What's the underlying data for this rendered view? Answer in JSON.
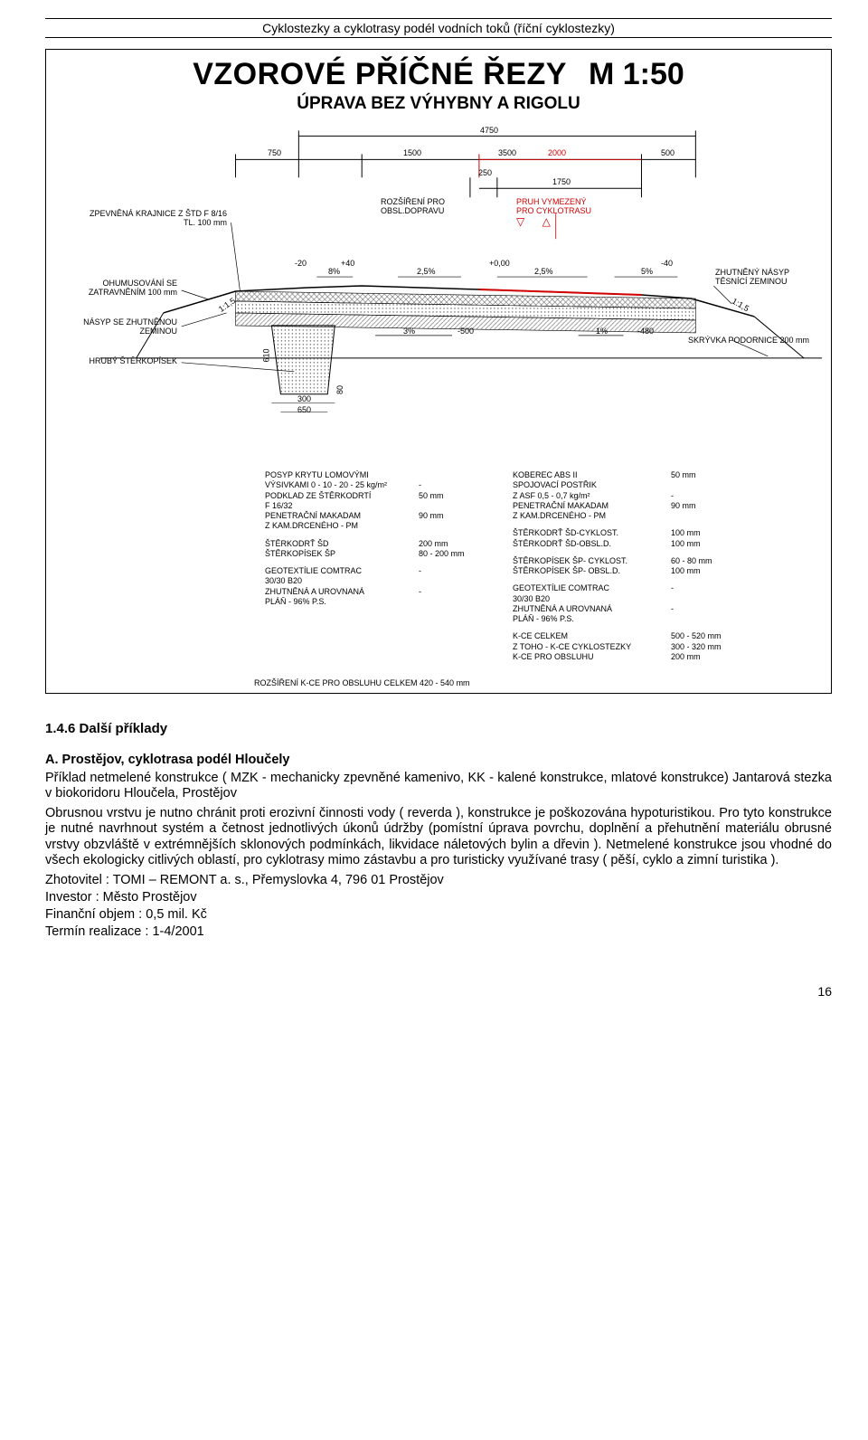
{
  "header": {
    "title": "Cyklostezky a cyklotrasy podél vodních toků (říční cyklostezky)"
  },
  "diagram": {
    "title": "VZOROVÉ PŘÍČNÉ ŘEZY",
    "scale": "M 1:50",
    "subtitle": "ÚPRAVA BEZ VÝHYBNY A RIGOLU",
    "dims": {
      "d4750": "4750",
      "d750": "750",
      "d1500": "1500",
      "d3500": "3500",
      "d500": "500",
      "d250": "250",
      "d1750": "1750",
      "d2000": "2000",
      "p8": "8%",
      "p25a": "2,5%",
      "p25b": "2,5%",
      "p5": "5%",
      "p3": "3%",
      "p1": "1%",
      "m20": "-20",
      "p40": "+40",
      "p000": "+0,00",
      "m40": "-40",
      "m500": "-500",
      "m480": "-480",
      "s115": "1:1,5",
      "s115b": "1:1,5",
      "v610": "610",
      "v80": "80",
      "b300": "300",
      "b650": "650"
    },
    "labels": {
      "zpev": "ZPEVNĚNÁ KRAJNICE Z ŠTD  F 8/16",
      "zpev2": "TL. 100 mm",
      "rozsir": "ROZŠÍŘENÍ PRO",
      "rozsir2": "OBSL.DOPRAVU",
      "pruh": "PRUH VYMEZENÝ",
      "pruh2": "PRO CYKLOTRASU",
      "tri": "▽   △",
      "ohum": "OHUMUSOVÁNÍ SE",
      "ohum2": "ZATRAVNĚNÍM 100 mm",
      "nasypl": "NÁSYP SE ZHUTNĚNOU",
      "nasypl2": "ZEMINOU",
      "hruby": "HRUBÝ ŠTĚRKOPÍSEK",
      "zhut": "ZHUTNĚNÝ NÁSYP",
      "zhut2": "TĚSNÍCÍ ZEMINOU",
      "skryv": "SKRÝVKA PODORNICE  200 mm"
    },
    "spec_left": [
      {
        "label": "POSYP KRYTU LOMOVÝMI",
        "value": ""
      },
      {
        "label": "VÝSIVKAMI  0 - 10 - 20 - 25 kg/m²",
        "value": "-"
      },
      {
        "label": "PODKLAD ZE ŠTĚRKODRTÍ",
        "value": "50 mm"
      },
      {
        "label": "F  16/32",
        "value": ""
      },
      {
        "label": "PENETRAČNÍ MAKADAM",
        "value": "90 mm"
      },
      {
        "label": "Z KAM.DRCENÉHO - PM",
        "value": ""
      },
      {
        "gap": true
      },
      {
        "label": "ŠTĚRKODRŤ  ŠD",
        "value": "200 mm"
      },
      {
        "label": "ŠTĚRKOPÍSEK  ŠP",
        "value": "80 - 200 mm"
      },
      {
        "gap": true
      },
      {
        "label": "GEOTEXTÍLIE COMTRAC",
        "value": "-"
      },
      {
        "label": "30/30  B20",
        "value": ""
      },
      {
        "label": "ZHUTNĚNÁ A UROVNANÁ",
        "value": "-"
      },
      {
        "label": "PLÁŇ - 96% P.S.",
        "value": ""
      }
    ],
    "spec_right": [
      {
        "label": "KOBEREC ABS II",
        "value": "50 mm"
      },
      {
        "label": "SPOJOVACÍ POSTŘIK",
        "value": ""
      },
      {
        "label": "Z ASF  0,5 - 0,7 kg/m²",
        "value": "-"
      },
      {
        "label": "PENETRAČNÍ MAKADAM",
        "value": "90 mm"
      },
      {
        "label": "Z KAM.DRCENÉHO - PM",
        "value": ""
      },
      {
        "gap": true
      },
      {
        "label": "ŠTĚRKODRŤ  ŠD-CYKLOST.",
        "value": "100 mm"
      },
      {
        "label": "ŠTĚRKODRŤ  ŠD-OBSL.D.",
        "value": "100 mm"
      },
      {
        "gap": true
      },
      {
        "label": "ŠTĚRKOPÍSEK ŠP- CYKLOST.",
        "value": "60 - 80 mm"
      },
      {
        "label": "ŠTĚRKOPÍSEK ŠP- OBSL.D.",
        "value": "100 mm"
      },
      {
        "gap": true
      },
      {
        "label": "GEOTEXTÍLIE COMTRAC",
        "value": "-"
      },
      {
        "label": "30/30  B20",
        "value": ""
      },
      {
        "label": "ZHUTNĚNÁ A UROVNANÁ",
        "value": "-"
      },
      {
        "label": "PLÁŇ - 96% P.S.",
        "value": ""
      },
      {
        "gap": true
      },
      {
        "label": "K-CE CELKEM",
        "value": "500 - 520 mm"
      },
      {
        "label": "Z TOHO - K-CE CYKLOSTEZKY",
        "value": "300 - 320 mm"
      },
      {
        "label": "               K-CE PRO OBSLUHU",
        "value": "200 mm"
      }
    ],
    "footer_note": "ROZŠÍŘENÍ K-CE PRO OBSLUHU CELKEM   420 - 540 mm"
  },
  "body": {
    "section_num": "1.4.6 Další příklady",
    "example_head": "A. Prostějov, cyklotrasa podél Hloučely",
    "para1": "Příklad netmelené konstrukce ( MZK - mechanicky zpevněné kamenivo, KK - kalené konstrukce, mlatové konstrukce) Jantarová stezka v biokoridoru Hloučela, Prostějov",
    "para2": "Obrusnou vrstvu je nutno chránit proti erozivní činnosti vody ( reverda ), konstrukce je poškozována hypoturistikou. Pro tyto konstrukce je nutné navrhnout systém a četnost jednotlivých úkonů údržby (pomístní úprava povrchu, doplnění a přehutnění materiálu obrusné vrstvy obzvláště v extrémnějších sklonových podmínkách, likvidace náletových bylin a dřevin ). Netmelené konstrukce jsou vhodné do všech ekologicky citlivých oblastí, pro cyklotrasy mimo zástavbu a pro turisticky využívané trasy ( pěší, cyklo a zimní turistika ).",
    "zhotovitel": "Zhotovitel : TOMI – REMONT a. s., Přemyslovka 4, 796 01 Prostějov",
    "investor": "Investor : Město Prostějov",
    "objem": "Finanční objem : 0,5 mil. Kč",
    "termin": "Termín realizace : 1-4/2001"
  },
  "page_number": "16",
  "colors": {
    "red": "#d00000",
    "black": "#000000",
    "hatch_dark": "#555",
    "hatch_light": "#aaa"
  }
}
